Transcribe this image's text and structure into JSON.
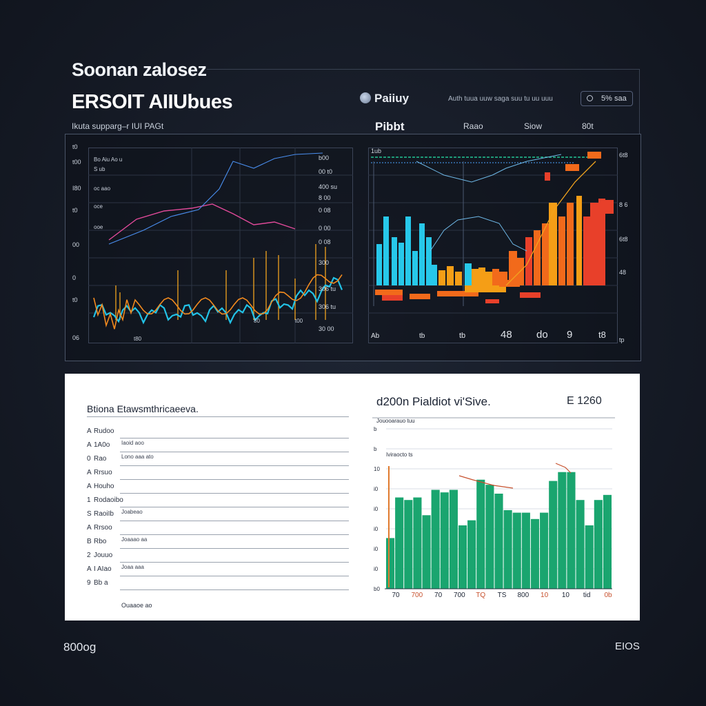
{
  "header": {
    "title": "Soonan zalosez",
    "subtitle": "ERSOIT AIIUbues",
    "caption": "Ikuta supparg–r IUI PAGt"
  },
  "brand": {
    "name": "Paiiuy",
    "filters": "Auth tuua uuw saga suu tu uu uuu",
    "select_value": "5% saa"
  },
  "table_header": {
    "title": "Pibbt",
    "cols": [
      "Raao",
      "Siow",
      "80t"
    ]
  },
  "left_chart": {
    "y_ticks": [
      "t0",
      "t00",
      "I80",
      "t0",
      "00",
      "0",
      "t0",
      "06"
    ],
    "right_ticks": [
      "b00",
      "00 t0",
      "400 su",
      "8 00",
      "0 08",
      "0 00",
      "0 08",
      "300",
      "306 tu",
      "306 tu",
      "30 00"
    ],
    "legend": [
      "Bo Aiu Ao u",
      "S ub",
      "oc aao",
      "oce",
      "ooe"
    ],
    "x_labels": [
      "t80",
      "80",
      "t00"
    ]
  },
  "right_chart": {
    "label": "1ub",
    "x_labels": [
      "Ab",
      "tb",
      "tb",
      "48",
      "do",
      "9",
      "t8"
    ],
    "y_ticks": [
      "6t8",
      "8 6",
      "6t8",
      "48",
      "tp"
    ],
    "accent_bar_colors": [
      "#27c8ea",
      "#f59e16",
      "#f26a1b",
      "#e8402a"
    ]
  },
  "bottom_left": {
    "title": "Btiona Etawsmthricaeeva.",
    "rows": [
      {
        "idx": "A",
        "label": "Rudoo",
        "value": ""
      },
      {
        "idx": "A",
        "label": "1A0o",
        "value": "Iaoid aoo"
      },
      {
        "idx": "0",
        "label": "Rao",
        "value": "Lono aaa ato"
      },
      {
        "idx": "A",
        "label": "Rrsuo",
        "value": ""
      },
      {
        "idx": "A",
        "label": "Houho",
        "value": ""
      },
      {
        "idx": "1",
        "label": "Rodaoibo",
        "value": ""
      },
      {
        "idx": "S",
        "label": "RaoiIb",
        "value": "Joabeao"
      },
      {
        "idx": "A",
        "label": "Rrsoo",
        "value": ""
      },
      {
        "idx": "B",
        "label": "Rbo",
        "value": "Joaaao aa"
      },
      {
        "idx": "2",
        "label": "Jouuo",
        "value": ""
      },
      {
        "idx": "A",
        "label": "I AIao",
        "value": "Joaa aaa"
      },
      {
        "idx": "9",
        "label": "Bb a",
        "value": ""
      }
    ],
    "footnote": "Ouaaoe ao"
  },
  "chart_data": {
    "type": "bar",
    "title": "d200n Pialdiot vi'Sive.",
    "subtitle": "Jouooarauo tuu",
    "legend": "Iviraocto ts",
    "meta": "E 1260",
    "y_ticks": [
      "b",
      "b",
      "10",
      "i0",
      "i0",
      "i0",
      "i0",
      "i0",
      "b0"
    ],
    "x_labels": [
      "70",
      "700",
      "70",
      "700",
      "TQ",
      "TS",
      "800",
      "10",
      "10",
      "tid",
      "0b"
    ],
    "series": [
      {
        "values": [
          40,
          72,
          70,
          72,
          58,
          78,
          76,
          78,
          50,
          54,
          86,
          82,
          75,
          62,
          60,
          60,
          55,
          60,
          85,
          92,
          92,
          70,
          50,
          70,
          74
        ]
      }
    ],
    "ylim": [
      0,
      100
    ],
    "bar_color": "#1aa56f",
    "trend_color": "#c7512e"
  },
  "footer": {
    "left": "800og",
    "right": "EIOS"
  }
}
